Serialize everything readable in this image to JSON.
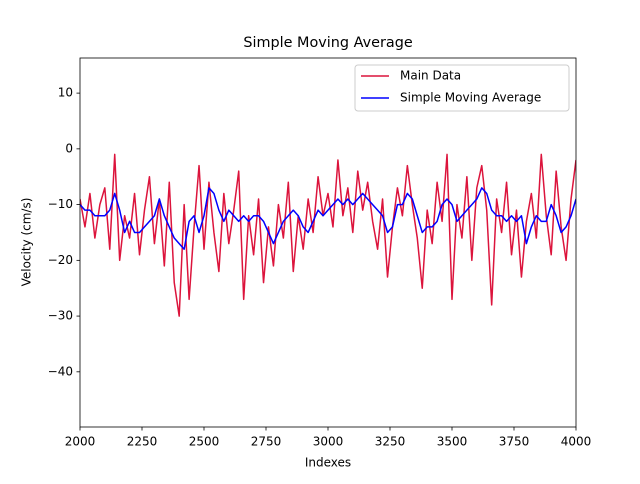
{
  "chart_data": {
    "type": "line",
    "title": "Simple Moving Average",
    "x_label": "Indexes",
    "y_label": "Velocity (cm/s)",
    "x": [
      2000,
      2020,
      2040,
      2060,
      2080,
      2100,
      2120,
      2140,
      2160,
      2180,
      2200,
      2220,
      2240,
      2260,
      2280,
      2300,
      2320,
      2340,
      2360,
      2380,
      2400,
      2420,
      2440,
      2460,
      2480,
      2500,
      2520,
      2540,
      2560,
      2580,
      2600,
      2620,
      2640,
      2660,
      2680,
      2700,
      2720,
      2740,
      2760,
      2780,
      2800,
      2820,
      2840,
      2860,
      2880,
      2900,
      2920,
      2940,
      2960,
      2980,
      3000,
      3020,
      3040,
      3060,
      3080,
      3100,
      3120,
      3140,
      3160,
      3180,
      3200,
      3220,
      3240,
      3260,
      3280,
      3300,
      3320,
      3340,
      3360,
      3380,
      3400,
      3420,
      3440,
      3460,
      3480,
      3500,
      3520,
      3540,
      3560,
      3580,
      3600,
      3620,
      3640,
      3660,
      3680,
      3700,
      3720,
      3740,
      3760,
      3780,
      3800,
      3820,
      3840,
      3860,
      3880,
      3900,
      3920,
      3940,
      3960,
      3980,
      4000
    ],
    "series": [
      {
        "name": "Main Data",
        "color": "#dc143c",
        "values": [
          -9,
          -14,
          -8,
          -16,
          -10,
          -7,
          -18,
          -1,
          -20,
          -12,
          -16,
          -8,
          -19,
          -11,
          -5,
          -17,
          -9,
          -21,
          -6,
          -24,
          -30,
          -10,
          -27,
          -14,
          -3,
          -18,
          -6,
          -15,
          -22,
          -8,
          -17,
          -11,
          -4,
          -27,
          -12,
          -19,
          -9,
          -24,
          -14,
          -21,
          -10,
          -16,
          -6,
          -22,
          -12,
          -18,
          -9,
          -15,
          -5,
          -12,
          -8,
          -14,
          -2,
          -12,
          -7,
          -15,
          -4,
          -11,
          -6,
          -13,
          -18,
          -9,
          -23,
          -14,
          -7,
          -12,
          -3,
          -10,
          -16,
          -25,
          -11,
          -17,
          -6,
          -13,
          -1,
          -27,
          -10,
          -16,
          -5,
          -20,
          -7,
          -3,
          -11,
          -28,
          -9,
          -15,
          -6,
          -19,
          -11,
          -23,
          -13,
          -8,
          -16,
          -1,
          -12,
          -19,
          -4,
          -14,
          -20,
          -9,
          -2
        ]
      },
      {
        "name": "Simple Moving Average",
        "color": "#0000ff",
        "values": [
          -10,
          -11,
          -11,
          -12,
          -12,
          -12,
          -11,
          -8,
          -11,
          -15,
          -13,
          -15,
          -15,
          -14,
          -13,
          -12,
          -9,
          -12,
          -14,
          -16,
          -17,
          -18,
          -13,
          -12,
          -15,
          -12,
          -7,
          -8,
          -11,
          -13,
          -11,
          -12,
          -13,
          -12,
          -13,
          -12,
          -12,
          -13,
          -15,
          -17,
          -15,
          -13,
          -12,
          -11,
          -12,
          -14,
          -15,
          -13,
          -11,
          -12,
          -11,
          -10,
          -9,
          -10,
          -9,
          -10,
          -9,
          -8,
          -9,
          -10,
          -11,
          -12,
          -15,
          -14,
          -10,
          -10,
          -8,
          -9,
          -12,
          -15,
          -14,
          -14,
          -13,
          -10,
          -9,
          -10,
          -13,
          -12,
          -11,
          -10,
          -9,
          -7,
          -8,
          -11,
          -12,
          -12,
          -13,
          -12,
          -13,
          -12,
          -17,
          -14,
          -12,
          -13,
          -13,
          -10,
          -12,
          -15,
          -14,
          -12,
          -9
        ]
      }
    ],
    "xlim": [
      2000,
      4000
    ],
    "xticks": [
      2000,
      2250,
      2500,
      2750,
      3000,
      3250,
      3500,
      3750,
      4000
    ],
    "ylim": [
      -49.9,
      16.3
    ],
    "yticks": [
      {
        "value": -40,
        "label": "−40"
      },
      {
        "value": -30,
        "label": "−30"
      },
      {
        "value": -20,
        "label": "−20"
      },
      {
        "value": -10,
        "label": "−10"
      },
      0,
      10
    ],
    "legend": "upper right",
    "grid": false
  }
}
